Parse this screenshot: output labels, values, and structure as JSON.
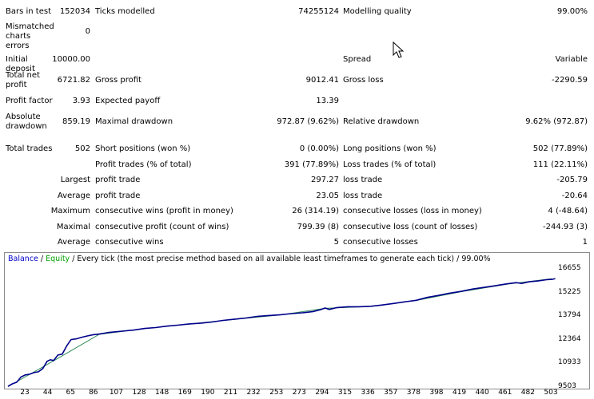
{
  "report": {
    "rows": [
      {
        "l1": "Bars in test",
        "v1": "152034",
        "l2": "Ticks modelled",
        "v2": "74255124",
        "l3": "Modelling quality",
        "v3": "99.00%"
      },
      {
        "l1": "Mismatched charts errors",
        "v1": "0",
        "l2": "",
        "v2": "",
        "l3": "",
        "v3": ""
      },
      {
        "l1": "Initial deposit",
        "v1": "10000.00",
        "l2": "",
        "v2": "",
        "l3": "Spread",
        "v3": "Variable"
      },
      {
        "l1": "Total net profit",
        "v1": "6721.82",
        "l2": "Gross profit",
        "v2": "9012.41",
        "l3": "Gross loss",
        "v3": "-2290.59"
      },
      {
        "l1": "Profit factor",
        "v1": "3.93",
        "l2": "Expected payoff",
        "v2": "13.39",
        "l3": "",
        "v3": ""
      },
      {
        "l1": "Absolute drawdown",
        "v1": "859.19",
        "l2": "Maximal drawdown",
        "v2": "972.87 (9.62%)",
        "l3": "Relative drawdown",
        "v3": "9.62% (972.87)"
      },
      {
        "l1": "Total trades",
        "v1": "502",
        "l2": "Short positions (won %)",
        "v2": "0 (0.00%)",
        "l3": "Long positions (won %)",
        "v3": "502 (77.89%)"
      },
      {
        "l1": "",
        "v1": "",
        "l2": "Profit trades (% of total)",
        "v2": "391 (77.89%)",
        "l3": "Loss trades (% of total)",
        "v3": "111 (22.11%)"
      },
      {
        "l1": "",
        "v1": "Largest",
        "l2": "profit trade",
        "v2": "297.27",
        "l3": "loss trade",
        "v3": "-205.79"
      },
      {
        "l1": "",
        "v1": "Average",
        "l2": "profit trade",
        "v2": "23.05",
        "l3": "loss trade",
        "v3": "-20.64"
      },
      {
        "l1": "",
        "v1": "Maximum",
        "l2": "consecutive wins (profit in money)",
        "v2": "26 (314.19)",
        "l3": "consecutive losses (loss in money)",
        "v3": "4 (-48.64)"
      },
      {
        "l1": "",
        "v1": "Maximal",
        "l2": "consecutive profit (count of wins)",
        "v2": "799.39 (8)",
        "l3": "consecutive loss (count of losses)",
        "v3": "-244.93 (3)"
      },
      {
        "l1": "",
        "v1": "Average",
        "l2": "consecutive wins",
        "v2": "5",
        "l3": "consecutive losses",
        "v3": "1"
      }
    ]
  },
  "chart_data": {
    "type": "line",
    "legend": {
      "balance": "Balance",
      "sep": " / ",
      "equity": "Equity",
      "rest": " / Every tick (the most precise method based on all available least timeframes to generate each tick) / 99.00%"
    },
    "y_ticks": [
      "16655",
      "15225",
      "13794",
      "12364",
      "10933",
      "9503"
    ],
    "x_ticks": [
      "23",
      "44",
      "65",
      "86",
      "107",
      "128",
      "148",
      "169",
      "190",
      "211",
      "232",
      "253",
      "273",
      "294",
      "315",
      "336",
      "357",
      "378",
      "398",
      "419",
      "440",
      "461",
      "482",
      "503"
    ],
    "ylim": [
      9503,
      17100
    ],
    "xlim": [
      2,
      510
    ],
    "series": [
      {
        "name": "Balance",
        "color": "#00008b",
        "x": [
          2,
          6,
          10,
          14,
          18,
          22,
          26,
          30,
          34,
          38,
          41,
          44,
          48,
          52,
          56,
          60,
          65,
          70,
          75,
          80,
          86,
          95,
          107,
          118,
          128,
          138,
          148,
          158,
          169,
          180,
          190,
          200,
          211,
          221,
          232,
          242,
          253,
          263,
          273,
          283,
          290,
          294,
          298,
          305,
          315,
          325,
          336,
          346,
          357,
          367,
          378,
          388,
          398,
          408,
          419,
          430,
          440,
          450,
          461,
          470,
          475,
          482,
          490,
          498,
          503,
          506
        ],
        "y": [
          9550,
          9700,
          9800,
          10130,
          10260,
          10300,
          10400,
          10450,
          10650,
          11100,
          11200,
          11150,
          11500,
          11550,
          12050,
          12450,
          12500,
          12600,
          12680,
          12750,
          12800,
          12900,
          12980,
          13050,
          13150,
          13200,
          13290,
          13350,
          13430,
          13480,
          13550,
          13650,
          13730,
          13800,
          13900,
          13950,
          14000,
          14070,
          14120,
          14200,
          14320,
          14420,
          14330,
          14450,
          14500,
          14500,
          14530,
          14600,
          14700,
          14800,
          14900,
          15080,
          15200,
          15330,
          15450,
          15600,
          15700,
          15800,
          15920,
          16000,
          15950,
          16050,
          16100,
          16180,
          16200,
          16250
        ]
      },
      {
        "name": "Equity",
        "color": "#2e8b57",
        "x": [
          2,
          44,
          86,
          128,
          169,
          211,
          253,
          294,
          336,
          378,
          419,
          461,
          503
        ],
        "y": [
          9530,
          11130,
          12780,
          13140,
          13420,
          13720,
          13990,
          14400,
          14520,
          14890,
          15430,
          15900,
          16240
        ]
      }
    ]
  }
}
